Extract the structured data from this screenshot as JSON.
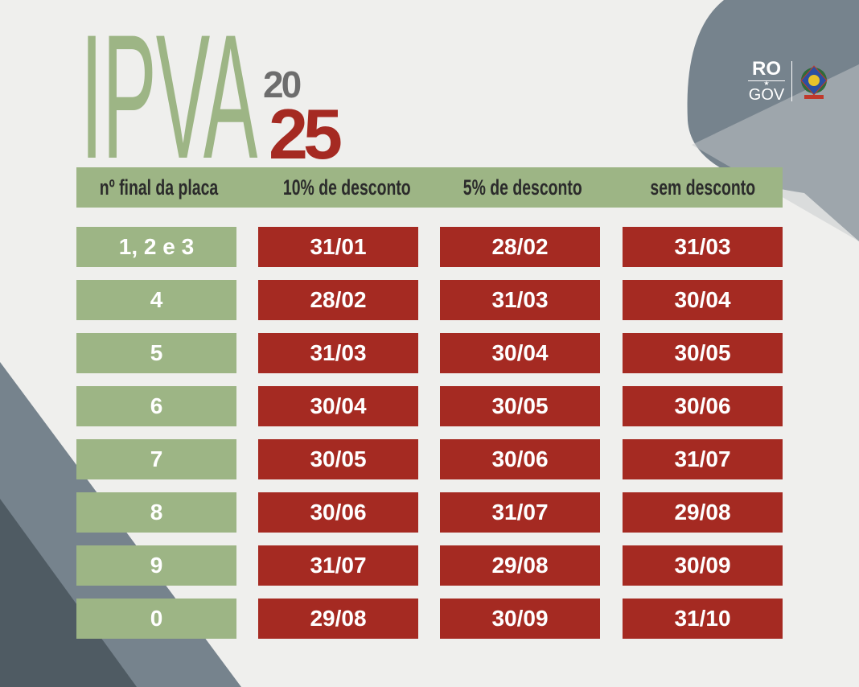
{
  "title": "IPVA",
  "year_top": "20",
  "year_bottom": "25",
  "logo": {
    "top": "RO",
    "bottom": "GOV"
  },
  "colors": {
    "green": "#9db585",
    "red": "#a52a22",
    "slate": "#76838d"
  },
  "headers": [
    "nº final da placa",
    "10% de desconto",
    "5% de desconto",
    "sem desconto"
  ],
  "rows": [
    {
      "plate": "1, 2  e 3",
      "d10": "31/01",
      "d5": "28/02",
      "none": "31/03"
    },
    {
      "plate": "4",
      "d10": "28/02",
      "d5": "31/03",
      "none": "30/04"
    },
    {
      "plate": "5",
      "d10": "31/03",
      "d5": "30/04",
      "none": "30/05"
    },
    {
      "plate": "6",
      "d10": "30/04",
      "d5": "30/05",
      "none": "30/06"
    },
    {
      "plate": "7",
      "d10": "30/05",
      "d5": "30/06",
      "none": "31/07"
    },
    {
      "plate": "8",
      "d10": "30/06",
      "d5": "31/07",
      "none": "29/08"
    },
    {
      "plate": "9",
      "d10": "31/07",
      "d5": "29/08",
      "none": "30/09"
    },
    {
      "plate": "0",
      "d10": "29/08",
      "d5": "30/09",
      "none": "31/10"
    }
  ]
}
